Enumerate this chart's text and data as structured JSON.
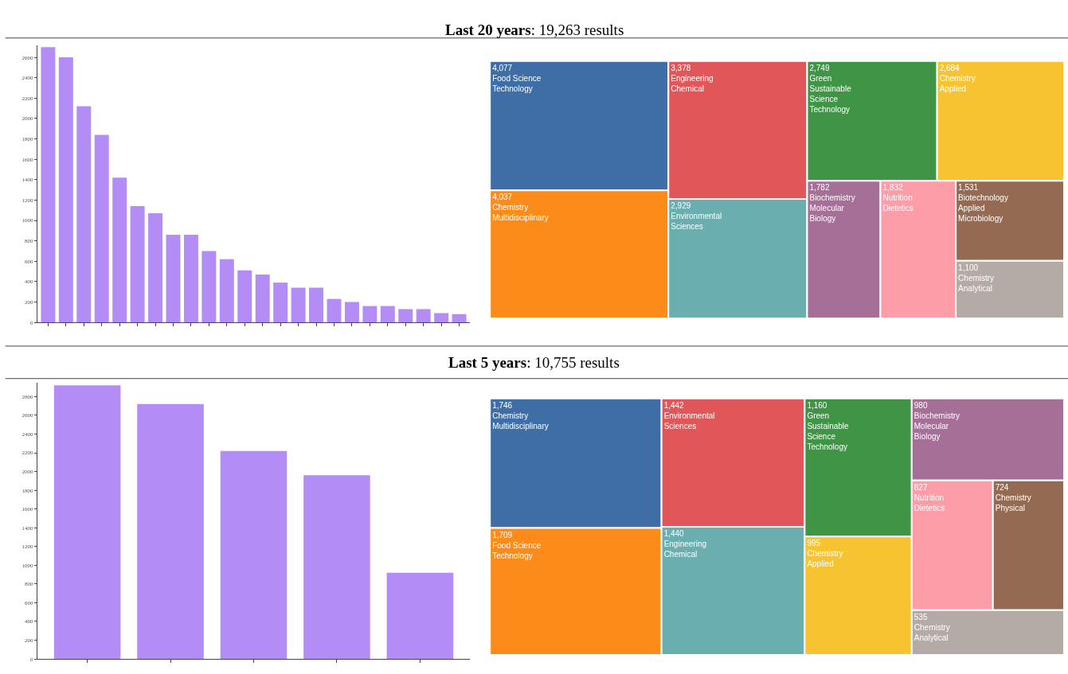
{
  "chart_data": [
    {
      "type": "bar",
      "title": "Last 20 years: 19,263 results",
      "categories": [
        null,
        null,
        null,
        null,
        null,
        null,
        null,
        null,
        null,
        null,
        null,
        null,
        null,
        null,
        null,
        null,
        null,
        null,
        null,
        null,
        null,
        null,
        null,
        null
      ],
      "values": [
        2700,
        2600,
        2120,
        1840,
        1420,
        1140,
        1070,
        860,
        860,
        700,
        620,
        510,
        470,
        390,
        340,
        340,
        230,
        200,
        160,
        160,
        130,
        130,
        90,
        80
      ],
      "color": "#b38cf5",
      "ylim": [
        0,
        2720
      ],
      "yticks": [
        0,
        200,
        400,
        600,
        800,
        1000,
        1200,
        1400,
        1600,
        1800,
        2000,
        2200,
        2400,
        2600
      ],
      "tick_labels": "y"
    },
    {
      "type": "other",
      "categories": [
        "Food Science Technology",
        "Chemistry Multidisciplinary",
        "Engineering Chemical",
        "Environmental Sciences",
        "Green Sustainable Science Technology",
        "Chemistry Applied",
        "Biochemistry Molecular Biology",
        "Nutrition Dietetics",
        "Biotechnology Applied Microbiology",
        "Chemistry Analytical"
      ],
      "values": [
        4077,
        4037,
        3378,
        2929,
        2749,
        2684,
        1782,
        1832,
        1531,
        1100
      ],
      "value_labels": [
        "4,077",
        "4,037",
        "3,378",
        "2,929",
        "2,749",
        "2,684",
        "1,782",
        "1,832",
        "1,531",
        "1,100"
      ],
      "colors": [
        "#3e6ea5",
        "#fd8b1a",
        "#e15759",
        "#6aaeb0",
        "#3f9445",
        "#f8c331",
        "#a56f98",
        "#fc9da7",
        "#946b52",
        "#b5aba6"
      ]
    },
    {
      "type": "bar",
      "title": "Last 5 years: 10,755 results",
      "categories": [
        null,
        null,
        null,
        null,
        null
      ],
      "values": [
        2920,
        2720,
        2220,
        1960,
        920
      ],
      "color": "#b38cf5",
      "ylim": [
        0,
        2950
      ],
      "yticks": [
        0,
        200,
        400,
        600,
        800,
        1000,
        1200,
        1400,
        1600,
        1800,
        2000,
        2200,
        2400,
        2600,
        2800
      ],
      "tick_labels": "y"
    },
    {
      "type": "other",
      "categories": [
        "Chemistry Multidisciplinary",
        "Food Science Technology",
        "Environmental Sciences",
        "Engineering Chemical",
        "Green Sustainable Science Technology",
        "Chemistry Applied",
        "Biochemistry Molecular Biology",
        "Nutrition Dietetics",
        "Chemistry Physical",
        "Chemistry Analytical"
      ],
      "values": [
        1746,
        1709,
        1442,
        1440,
        1160,
        995,
        980,
        827,
        724,
        535
      ],
      "value_labels": [
        "1,746",
        "1,709",
        "1,442",
        "1,440",
        "1,160",
        "995",
        "980",
        "827",
        "724",
        "535"
      ],
      "colors": [
        "#3e6ea5",
        "#fd8b1a",
        "#e15759",
        "#6aaeb0",
        "#3f9445",
        "#f8c331",
        "#a56f98",
        "#fc9da7",
        "#946b52",
        "#b5aba6"
      ]
    }
  ]
}
